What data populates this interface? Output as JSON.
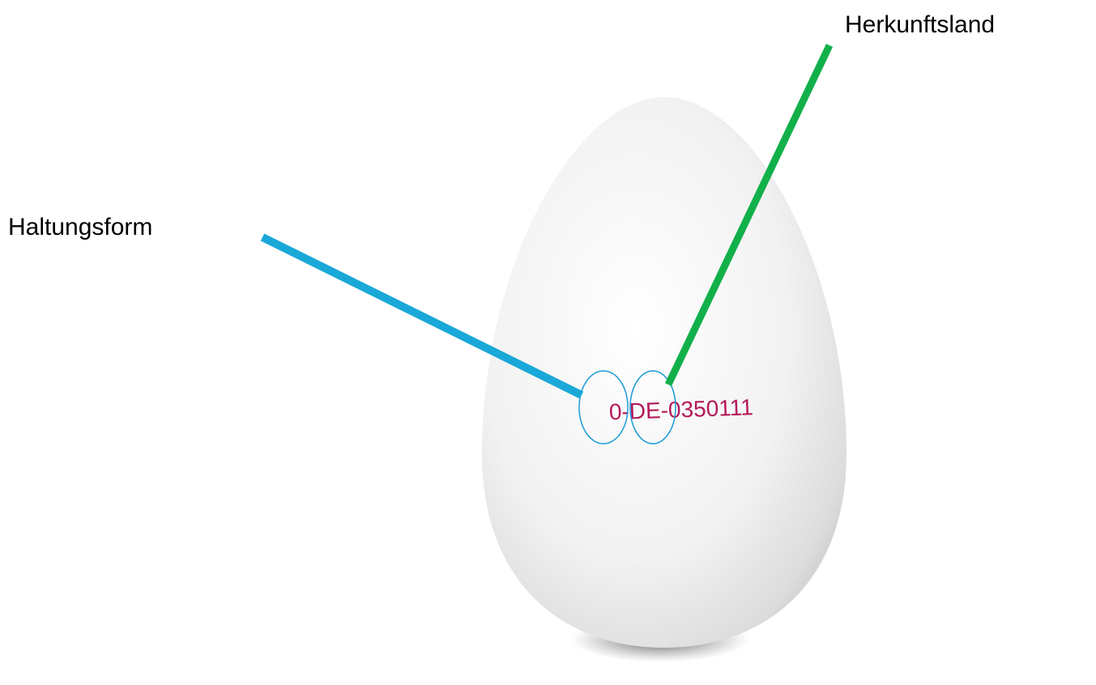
{
  "labels": {
    "origin": "Herkunftsland",
    "housing": "Haltungsform"
  },
  "egg": {
    "stamp": "0-DE-0350111"
  }
}
